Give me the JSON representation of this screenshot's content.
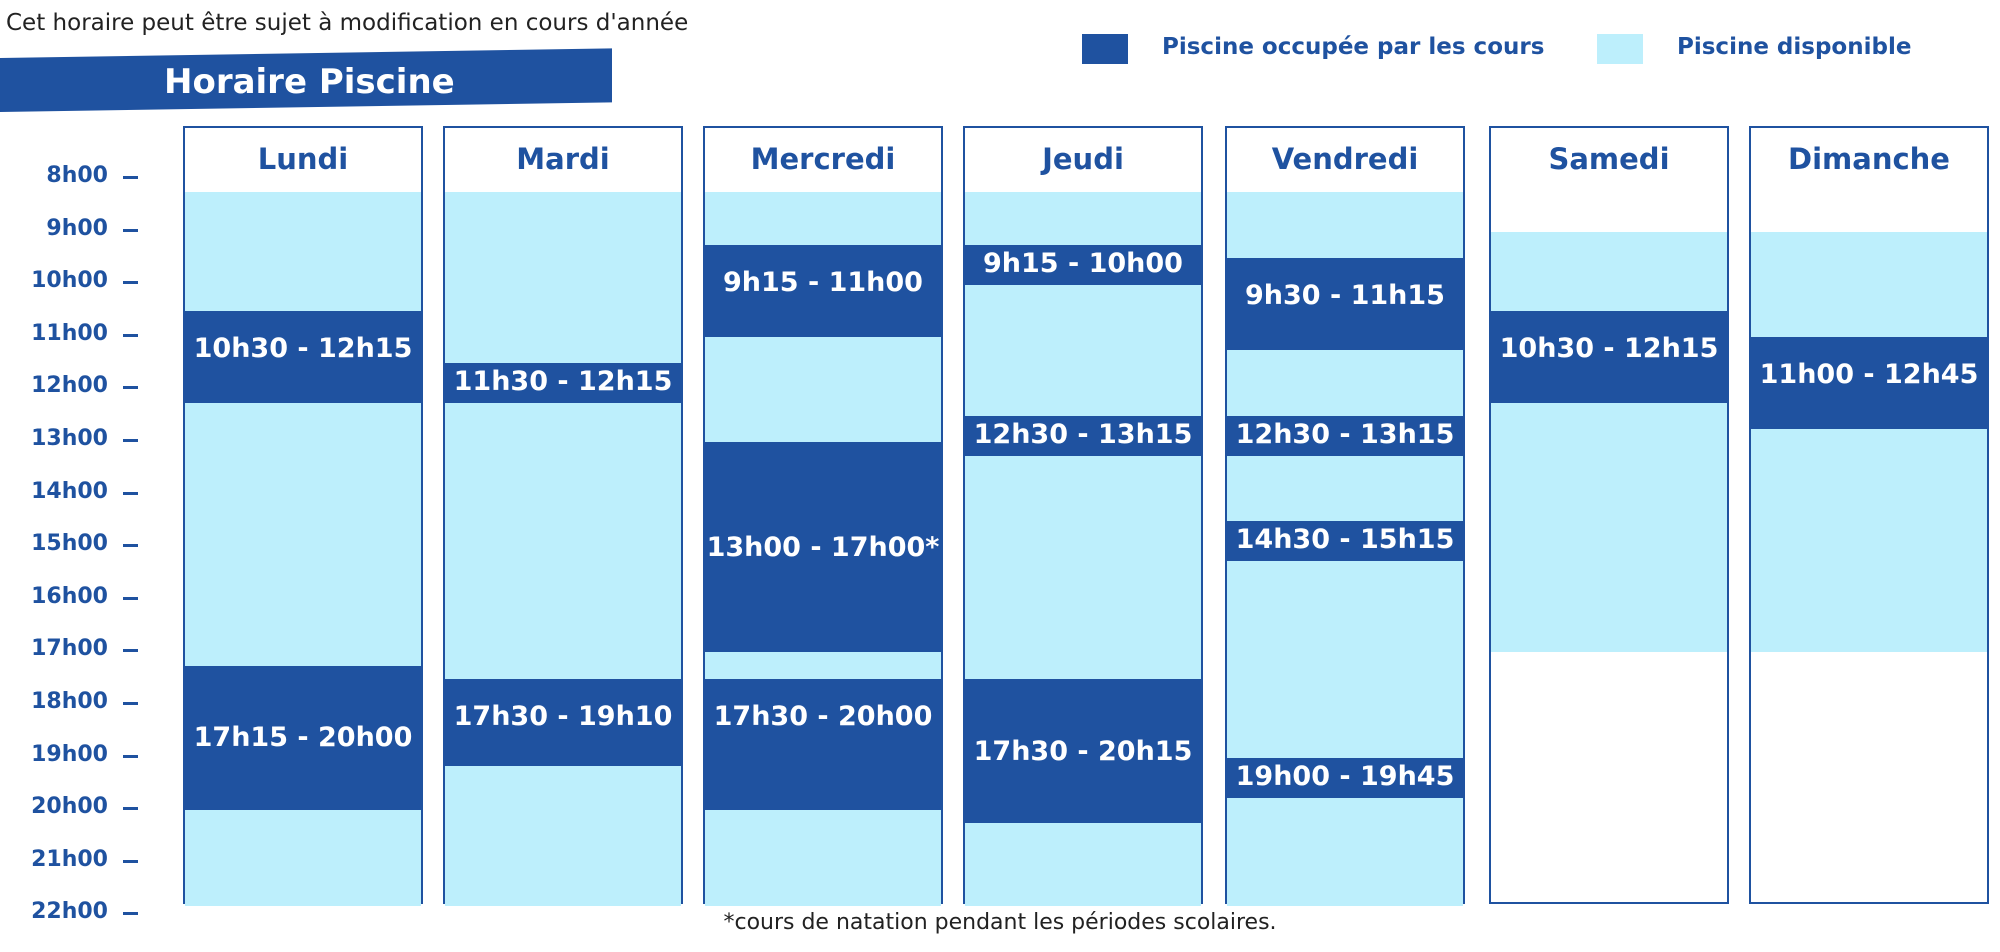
{
  "disclaimer": "Cet horaire peut être sujet à modification en cours d'année",
  "title": "Horaire Piscine",
  "legend": [
    {
      "label": "Piscine occupée par les cours",
      "color": "#1f52a0"
    },
    {
      "label": "Piscine disponible",
      "color": "#bdeffc"
    }
  ],
  "hours": [
    "8h00",
    "9h00",
    "10h00",
    "11h00",
    "12h00",
    "13h00",
    "14h00",
    "15h00",
    "16h00",
    "17h00",
    "18h00",
    "19h00",
    "20h00",
    "21h00",
    "22h00"
  ],
  "days": [
    {
      "name": "Lundi",
      "available": [
        "8h15",
        "22h00"
      ],
      "blocks": [
        "10h30 - 12h15",
        "17h15 - 20h00"
      ]
    },
    {
      "name": "Mardi",
      "available": [
        "8h15",
        "22h00"
      ],
      "blocks": [
        "11h30 - 12h15",
        "17h30 - 19h10"
      ]
    },
    {
      "name": "Mercredi",
      "available": [
        "8h15",
        "22h00"
      ],
      "blocks": [
        "9h15 - 11h00",
        "13h00 - 17h00*",
        "17h30 - 20h00"
      ]
    },
    {
      "name": "Jeudi",
      "available": [
        "8h15",
        "22h00"
      ],
      "blocks": [
        "9h15 - 10h00",
        "12h30 - 13h15",
        "17h30 - 20h15"
      ]
    },
    {
      "name": "Vendredi",
      "available": [
        "8h15",
        "22h00"
      ],
      "blocks": [
        "9h30 - 11h15",
        "12h30 - 13h15",
        "14h30 - 15h15",
        "19h00 - 19h45"
      ]
    },
    {
      "name": "Samedi",
      "available": [
        "9h00",
        "17h00"
      ],
      "blocks": [
        "10h30 - 12h15"
      ]
    },
    {
      "name": "Dimanche",
      "available": [
        "9h00",
        "17h00"
      ],
      "blocks": [
        "11h00 - 12h45"
      ]
    }
  ],
  "footnote": "*cours de natation pendant les périodes scolaires."
}
